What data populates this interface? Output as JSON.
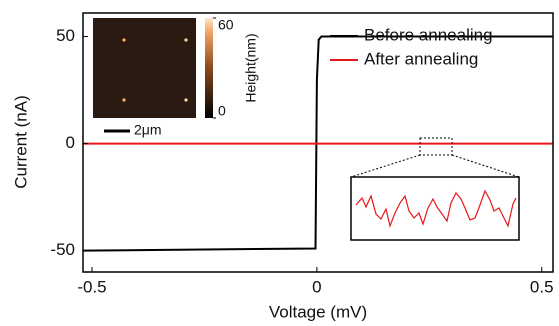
{
  "chart_data": {
    "type": "line",
    "xlabel": "Voltage (mV)",
    "ylabel": "Current (nA)",
    "x": [
      -0.52,
      -0.003,
      0,
      0.004,
      0.01,
      0.525
    ],
    "series": [
      {
        "name": "Before annealing",
        "color": "#000000",
        "values": [
          -50,
          -49,
          30,
          48.5,
          50,
          50
        ]
      },
      {
        "name": "After annealing",
        "color": "#e8171b",
        "values": [
          0,
          0,
          0,
          0,
          0,
          0
        ]
      }
    ],
    "xlim": [
      -0.52,
      0.525
    ],
    "xticks": [
      -0.5,
      0,
      0.5
    ],
    "ylim": [
      -60,
      61
    ],
    "yticks": [
      -50,
      0,
      50
    ],
    "legend": "upper right",
    "inset": {
      "colorbar_label": "Height(nm)",
      "colorbar_lim": [
        0,
        60
      ],
      "colorbar_ticks": [
        0,
        60
      ],
      "scale_bar": "2μm"
    }
  }
}
